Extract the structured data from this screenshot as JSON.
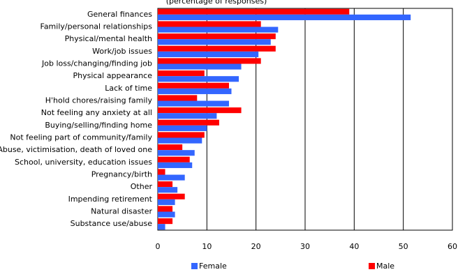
{
  "chart_data": {
    "type": "barh",
    "subtitle": "(percentage of responses)",
    "categories": [
      "General finances",
      "Family/personal relationships",
      "Physical/mental health",
      "Work/job issues",
      "Job loss/changing/finding job",
      "Physical appearance",
      "Lack of time",
      "H'hold chores/raising family",
      "Not feeling any anxiety at all",
      "Buying/selling/finding home",
      "Not feeling part of community/family",
      "Abuse, victimisation, death of loved one",
      "School, university, education issues",
      "Pregnancy/birth",
      "Other",
      "Impending retirement",
      "Natural disaster",
      "Substance use/abuse"
    ],
    "series": [
      {
        "name": "Female",
        "color": "#3366ff",
        "values": [
          51.5,
          24.5,
          23,
          20.5,
          17,
          16.5,
          15,
          14.5,
          12,
          10,
          9,
          7.5,
          7,
          5.5,
          4,
          3.5,
          3.5,
          1.5
        ]
      },
      {
        "name": "Male",
        "color": "#ff0000",
        "values": [
          39,
          21,
          24,
          24,
          21,
          9.5,
          14.5,
          8,
          17,
          12.5,
          9.5,
          5,
          6.5,
          1.5,
          3,
          5.5,
          3,
          3
        ]
      }
    ],
    "xlim": [
      0,
      60
    ],
    "xticks": [
      0,
      10,
      20,
      30,
      40,
      50,
      60
    ],
    "grid": true
  }
}
